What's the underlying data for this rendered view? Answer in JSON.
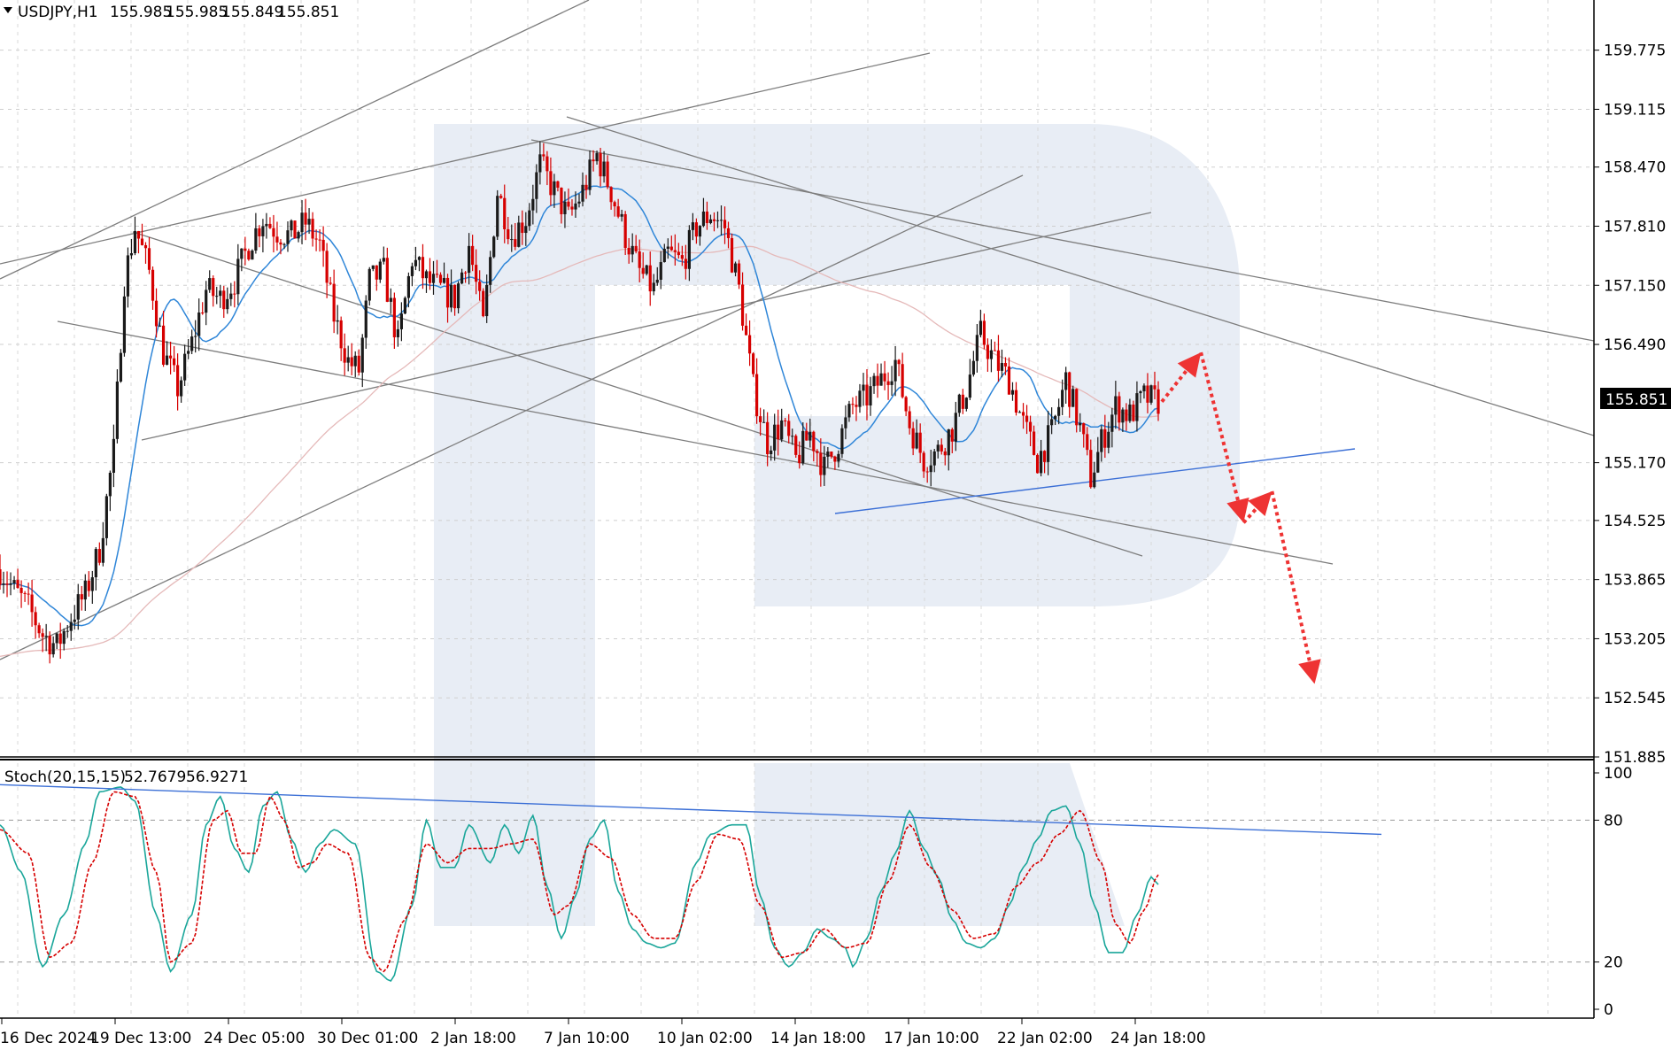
{
  "header": {
    "symbol": "USDJPY,H1",
    "open": "155.985",
    "high": "155.985",
    "low": "155.849",
    "close": "155.851"
  },
  "indicator": {
    "name": "Stoch(20,15,15)",
    "main_value": "52.7679",
    "signal_value": "56.9271"
  },
  "current_price_label": "155.851",
  "colors": {
    "bull": "#1a1a1a",
    "bear": "#d60000",
    "ma_fast": "#2f86d8",
    "ma_slow": "#e5b9b9",
    "trendline": "#7d7d7d",
    "support": "#3b6fd6",
    "forecast": "#ee3333",
    "stoch_main": "#1aa69a",
    "stoch_signal": "#d60000",
    "watermark": "#e8edf5"
  },
  "chart_data": [
    {
      "type": "candlestick",
      "title": "USDJPY,H1",
      "x_ticks": [
        "16 Dec 2024",
        "19 Dec 13:00",
        "24 Dec 05:00",
        "30 Dec 01:00",
        "2 Jan 18:00",
        "7 Jan 10:00",
        "10 Jan 02:00",
        "14 Jan 18:00",
        "17 Jan 10:00",
        "22 Jan 02:00",
        "24 Jan 18:00"
      ],
      "y_ticks": [
        "159.775",
        "159.115",
        "158.470",
        "157.810",
        "157.150",
        "156.490",
        "155.170",
        "154.525",
        "153.865",
        "153.205",
        "152.545",
        "151.885"
      ],
      "ylim": [
        151.885,
        160.3
      ],
      "grid": true,
      "price_path": [
        [
          0,
          153.98
        ],
        [
          4,
          153.75
        ],
        [
          8,
          153.55
        ],
        [
          12,
          153.25
        ],
        [
          16,
          153.12
        ],
        [
          20,
          153.45
        ],
        [
          24,
          153.7
        ],
        [
          28,
          154.2
        ],
        [
          32,
          155.3
        ],
        [
          35,
          157.2
        ],
        [
          38,
          157.8
        ],
        [
          42,
          157.3
        ],
        [
          46,
          156.4
        ],
        [
          50,
          156.0
        ],
        [
          54,
          156.5
        ],
        [
          58,
          157.1
        ],
        [
          62,
          157.0
        ],
        [
          66,
          157.2
        ],
        [
          70,
          157.6
        ],
        [
          74,
          157.9
        ],
        [
          78,
          157.75
        ],
        [
          82,
          157.7
        ],
        [
          86,
          157.85
        ],
        [
          90,
          157.6
        ],
        [
          94,
          156.8
        ],
        [
          98,
          156.3
        ],
        [
          101,
          156.2
        ],
        [
          104,
          157.2
        ],
        [
          108,
          157.3
        ],
        [
          112,
          156.5
        ],
        [
          116,
          157.45
        ],
        [
          120,
          157.2
        ],
        [
          124,
          157.1
        ],
        [
          128,
          157.0
        ],
        [
          132,
          157.6
        ],
        [
          136,
          156.7
        ],
        [
          140,
          158.2
        ],
        [
          144,
          157.7
        ],
        [
          148,
          157.9
        ],
        [
          152,
          158.5
        ],
        [
          156,
          158.2
        ],
        [
          160,
          157.9
        ],
        [
          164,
          158.2
        ],
        [
          168,
          158.6
        ],
        [
          172,
          158.2
        ],
        [
          176,
          157.7
        ],
        [
          180,
          157.3
        ],
        [
          184,
          157.1
        ],
        [
          188,
          157.5
        ],
        [
          192,
          157.4
        ],
        [
          196,
          157.8
        ],
        [
          200,
          157.95
        ],
        [
          204,
          157.8
        ],
        [
          208,
          157.1
        ],
        [
          212,
          156.0
        ],
        [
          216,
          155.4
        ],
        [
          220,
          155.6
        ],
        [
          224,
          155.2
        ],
        [
          228,
          155.5
        ],
        [
          232,
          155.1
        ],
        [
          236,
          155.4
        ],
        [
          240,
          155.8
        ],
        [
          244,
          155.9
        ],
        [
          248,
          156.1
        ],
        [
          252,
          156.3
        ],
        [
          256,
          155.6
        ],
        [
          260,
          155.2
        ],
        [
          264,
          155.3
        ],
        [
          268,
          155.55
        ],
        [
          272,
          156.0
        ],
        [
          276,
          156.6
        ],
        [
          280,
          156.3
        ],
        [
          284,
          156.1
        ],
        [
          288,
          155.6
        ],
        [
          292,
          155.2
        ],
        [
          296,
          155.5
        ],
        [
          300,
          156.1
        ],
        [
          304,
          155.55
        ],
        [
          307,
          155.0
        ],
        [
          310,
          155.4
        ],
        [
          314,
          155.8
        ],
        [
          318,
          155.7
        ],
        [
          322,
          155.9
        ],
        [
          326,
          155.851
        ]
      ],
      "series": [
        {
          "name": "MA fast",
          "values_note": ""
        },
        {
          "name": "MA slow",
          "values_note": ""
        }
      ],
      "support_level": 154.65,
      "forecast_path": [
        [
          327,
          155.851
        ],
        [
          338,
          156.4
        ],
        [
          350,
          154.5
        ],
        [
          358,
          154.85
        ],
        [
          370,
          152.7
        ]
      ]
    },
    {
      "type": "line",
      "title": "Stoch(20,15,15)",
      "y_ticks": [
        "100",
        "80",
        "20",
        "0"
      ],
      "ylim": [
        0,
        100
      ],
      "levels": [
        80,
        20
      ],
      "main_path": [
        [
          0,
          78
        ],
        [
          6,
          58
        ],
        [
          12,
          18
        ],
        [
          18,
          40
        ],
        [
          24,
          70
        ],
        [
          28,
          92
        ],
        [
          34,
          94
        ],
        [
          38,
          88
        ],
        [
          44,
          40
        ],
        [
          48,
          16
        ],
        [
          54,
          40
        ],
        [
          58,
          78
        ],
        [
          62,
          90
        ],
        [
          66,
          68
        ],
        [
          70,
          58
        ],
        [
          74,
          86
        ],
        [
          78,
          92
        ],
        [
          82,
          72
        ],
        [
          86,
          58
        ],
        [
          90,
          70
        ],
        [
          94,
          76
        ],
        [
          100,
          70
        ],
        [
          106,
          16
        ],
        [
          110,
          12
        ],
        [
          116,
          44
        ],
        [
          120,
          80
        ],
        [
          124,
          60
        ],
        [
          128,
          60
        ],
        [
          132,
          78
        ],
        [
          138,
          62
        ],
        [
          142,
          78
        ],
        [
          146,
          66
        ],
        [
          150,
          82
        ],
        [
          154,
          52
        ],
        [
          158,
          30
        ],
        [
          162,
          48
        ],
        [
          166,
          72
        ],
        [
          170,
          80
        ],
        [
          174,
          50
        ],
        [
          178,
          34
        ],
        [
          182,
          28
        ],
        [
          186,
          26
        ],
        [
          190,
          28
        ],
        [
          196,
          62
        ],
        [
          200,
          74
        ],
        [
          206,
          78
        ],
        [
          210,
          78
        ],
        [
          214,
          48
        ],
        [
          218,
          26
        ],
        [
          222,
          18
        ],
        [
          226,
          24
        ],
        [
          230,
          34
        ],
        [
          234,
          30
        ],
        [
          238,
          26
        ],
        [
          240,
          18
        ],
        [
          244,
          30
        ],
        [
          248,
          50
        ],
        [
          252,
          66
        ],
        [
          256,
          84
        ],
        [
          260,
          68
        ],
        [
          264,
          56
        ],
        [
          268,
          38
        ],
        [
          272,
          28
        ],
        [
          276,
          26
        ],
        [
          280,
          30
        ],
        [
          284,
          44
        ],
        [
          288,
          60
        ],
        [
          292,
          72
        ],
        [
          296,
          84
        ],
        [
          300,
          86
        ],
        [
          304,
          70
        ],
        [
          308,
          44
        ],
        [
          312,
          24
        ],
        [
          316,
          24
        ],
        [
          320,
          40
        ],
        [
          324,
          56
        ],
        [
          326,
          52.77
        ]
      ],
      "signal_path": [
        [
          0,
          76
        ],
        [
          8,
          66
        ],
        [
          14,
          22
        ],
        [
          20,
          28
        ],
        [
          26,
          62
        ],
        [
          32,
          92
        ],
        [
          38,
          90
        ],
        [
          44,
          58
        ],
        [
          48,
          20
        ],
        [
          54,
          28
        ],
        [
          60,
          80
        ],
        [
          64,
          84
        ],
        [
          68,
          66
        ],
        [
          72,
          66
        ],
        [
          76,
          90
        ],
        [
          80,
          80
        ],
        [
          84,
          60
        ],
        [
          88,
          62
        ],
        [
          92,
          70
        ],
        [
          98,
          66
        ],
        [
          104,
          22
        ],
        [
          108,
          16
        ],
        [
          114,
          38
        ],
        [
          120,
          70
        ],
        [
          126,
          62
        ],
        [
          132,
          68
        ],
        [
          138,
          68
        ],
        [
          144,
          70
        ],
        [
          150,
          72
        ],
        [
          156,
          40
        ],
        [
          160,
          44
        ],
        [
          166,
          70
        ],
        [
          172,
          64
        ],
        [
          178,
          40
        ],
        [
          184,
          30
        ],
        [
          190,
          30
        ],
        [
          196,
          54
        ],
        [
          202,
          74
        ],
        [
          208,
          72
        ],
        [
          214,
          44
        ],
        [
          220,
          22
        ],
        [
          226,
          24
        ],
        [
          232,
          34
        ],
        [
          238,
          26
        ],
        [
          244,
          28
        ],
        [
          250,
          54
        ],
        [
          256,
          78
        ],
        [
          262,
          60
        ],
        [
          268,
          42
        ],
        [
          274,
          30
        ],
        [
          280,
          32
        ],
        [
          286,
          52
        ],
        [
          292,
          62
        ],
        [
          298,
          74
        ],
        [
          304,
          84
        ],
        [
          310,
          62
        ],
        [
          314,
          36
        ],
        [
          318,
          28
        ],
        [
          322,
          42
        ],
        [
          326,
          56.93
        ]
      ],
      "trendline_from": 95,
      "trendline_to": 74
    }
  ]
}
